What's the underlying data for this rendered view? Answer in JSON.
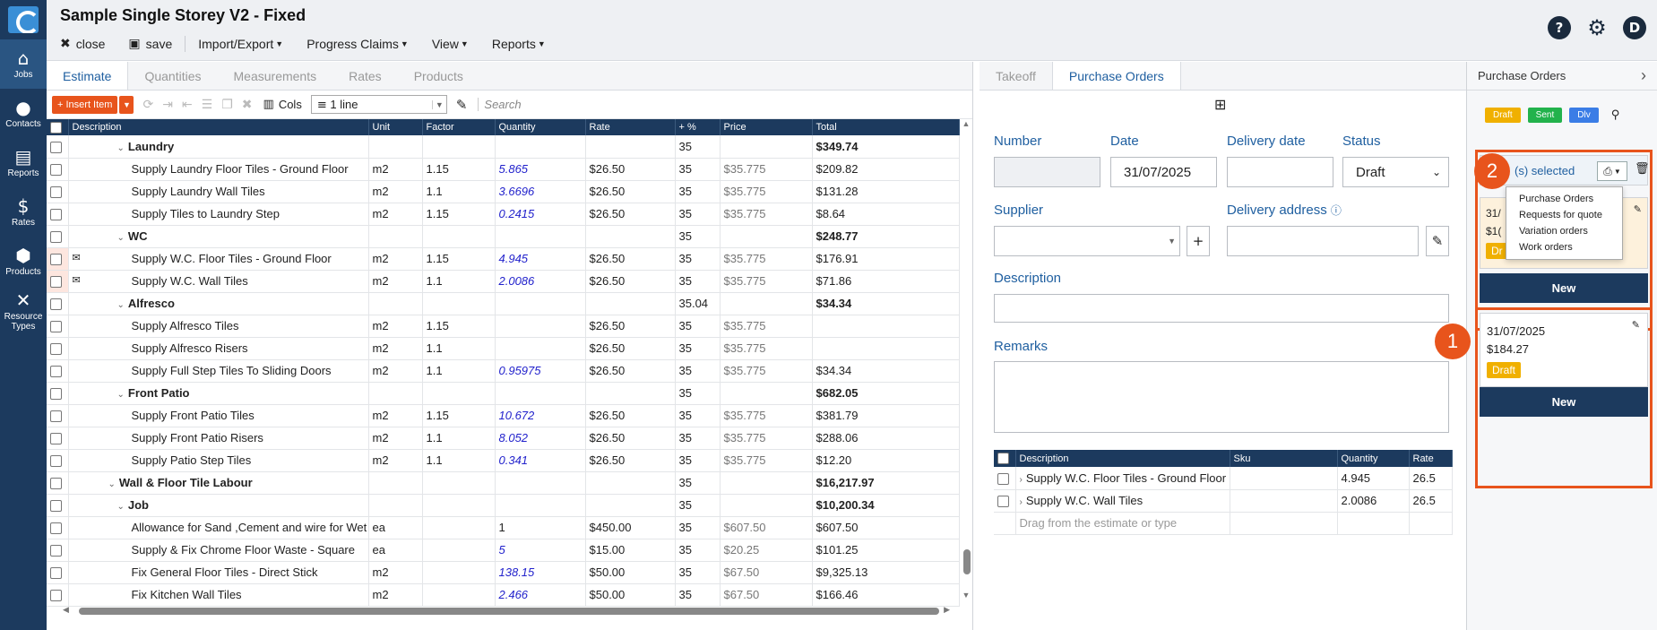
{
  "sidebar": {
    "items": [
      {
        "label": "Jobs",
        "icon": "home-icon"
      },
      {
        "label": "Contacts",
        "icon": "user-icon"
      },
      {
        "label": "Reports",
        "icon": "report-icon"
      },
      {
        "label": "Rates",
        "icon": "rates-icon"
      },
      {
        "label": "Products",
        "icon": "box-icon"
      },
      {
        "label": "Resource Types",
        "icon": "tools-icon"
      }
    ]
  },
  "header": {
    "title": "Sample Single Storey V2 - Fixed",
    "close": "close",
    "save": "save",
    "import_export": "Import/Export",
    "progress_claims": "Progress Claims",
    "view": "View",
    "reports": "Reports",
    "user_initial": "D"
  },
  "left_tabs": [
    "Estimate",
    "Quantities",
    "Measurements",
    "Rates",
    "Products"
  ],
  "estimate_toolbar": {
    "insert_item": "Insert Item",
    "cols": "Cols",
    "line_option": "1 line",
    "search_placeholder": "Search"
  },
  "grid": {
    "columns": [
      "Description",
      "Unit",
      "Factor",
      "Quantity",
      "Rate",
      "+ %",
      "Price",
      "Total"
    ],
    "rows": [
      {
        "level": 2,
        "group": true,
        "desc": "Laundry",
        "unit": "",
        "factor": "",
        "qty": "",
        "rate": "",
        "pct": "35",
        "price": "",
        "total": "$349.74"
      },
      {
        "level": 3,
        "desc": "Supply Laundry Floor Tiles - Ground Floor",
        "unit": "m2",
        "factor": "1.15",
        "qty": "5.865",
        "rate": "$26.50",
        "pct": "35",
        "price": "$35.775",
        "total": "$209.82"
      },
      {
        "level": 3,
        "desc": "Supply Laundry Wall Tiles",
        "unit": "m2",
        "factor": "1.1",
        "qty": "3.6696",
        "rate": "$26.50",
        "pct": "35",
        "price": "$35.775",
        "total": "$131.28"
      },
      {
        "level": 3,
        "desc": "Supply Tiles to Laundry Step",
        "unit": "m2",
        "factor": "1.15",
        "qty": "0.2415",
        "rate": "$26.50",
        "pct": "35",
        "price": "$35.775",
        "total": "$8.64"
      },
      {
        "level": 2,
        "group": true,
        "desc": "WC",
        "unit": "",
        "factor": "",
        "qty": "",
        "rate": "",
        "pct": "35",
        "price": "",
        "total": "$248.77"
      },
      {
        "level": 3,
        "marked": true,
        "desc": "Supply W.C. Floor Tiles - Ground Floor",
        "unit": "m2",
        "factor": "1.15",
        "qty": "4.945",
        "rate": "$26.50",
        "pct": "35",
        "price": "$35.775",
        "total": "$176.91"
      },
      {
        "level": 3,
        "marked": true,
        "desc": "Supply W.C. Wall Tiles",
        "unit": "m2",
        "factor": "1.1",
        "qty": "2.0086",
        "rate": "$26.50",
        "pct": "35",
        "price": "$35.775",
        "total": "$71.86"
      },
      {
        "level": 2,
        "group": true,
        "desc": "Alfresco",
        "unit": "",
        "factor": "",
        "qty": "",
        "rate": "",
        "pct": "35.04",
        "price": "",
        "total": "$34.34"
      },
      {
        "level": 3,
        "desc": "Supply Alfresco Tiles",
        "unit": "m2",
        "factor": "1.15",
        "qty": "",
        "rate": "$26.50",
        "pct": "35",
        "price": "$35.775",
        "total": ""
      },
      {
        "level": 3,
        "desc": "Supply Alfresco Risers",
        "unit": "m2",
        "factor": "1.1",
        "qty": "",
        "rate": "$26.50",
        "pct": "35",
        "price": "$35.775",
        "total": ""
      },
      {
        "level": 3,
        "desc": "Supply Full Step Tiles To Sliding Doors",
        "unit": "m2",
        "factor": "1.1",
        "qty": "0.95975",
        "rate": "$26.50",
        "pct": "35",
        "price": "$35.775",
        "total": "$34.34"
      },
      {
        "level": 2,
        "group": true,
        "desc": "Front Patio",
        "unit": "",
        "factor": "",
        "qty": "",
        "rate": "",
        "pct": "35",
        "price": "",
        "total": "$682.05"
      },
      {
        "level": 3,
        "desc": "Supply Front Patio Tiles",
        "unit": "m2",
        "factor": "1.15",
        "qty": "10.672",
        "rate": "$26.50",
        "pct": "35",
        "price": "$35.775",
        "total": "$381.79"
      },
      {
        "level": 3,
        "desc": "Supply Front Patio Risers",
        "unit": "m2",
        "factor": "1.1",
        "qty": "8.052",
        "rate": "$26.50",
        "pct": "35",
        "price": "$35.775",
        "total": "$288.06"
      },
      {
        "level": 3,
        "desc": "Supply Patio Step Tiles",
        "unit": "m2",
        "factor": "1.1",
        "qty": "0.341",
        "rate": "$26.50",
        "pct": "35",
        "price": "$35.775",
        "total": "$12.20"
      },
      {
        "level": 1,
        "group": true,
        "desc": "Wall & Floor Tile Labour",
        "unit": "",
        "factor": "",
        "qty": "",
        "rate": "",
        "pct": "35",
        "price": "",
        "total": "$16,217.97"
      },
      {
        "level": 2,
        "group": true,
        "desc": "Job",
        "unit": "",
        "factor": "",
        "qty": "",
        "rate": "",
        "pct": "35",
        "price": "",
        "total": "$10,200.34"
      },
      {
        "level": 3,
        "desc": "Allowance for Sand ,Cement and wire for Wet Areas",
        "unit": "ea",
        "factor": "",
        "qty": "1",
        "qty_plain": true,
        "rate": "$450.00",
        "pct": "35",
        "price": "$607.50",
        "total": "$607.50"
      },
      {
        "level": 3,
        "desc": "Supply & Fix Chrome Floor Waste - Square",
        "unit": "ea",
        "factor": "",
        "qty": "5",
        "rate": "$15.00",
        "pct": "35",
        "price": "$20.25",
        "total": "$101.25"
      },
      {
        "level": 3,
        "desc": "Fix General Floor Tiles - Direct Stick",
        "unit": "m2",
        "factor": "",
        "qty": "138.15",
        "rate": "$50.00",
        "pct": "35",
        "price": "$67.50",
        "total": "$9,325.13"
      },
      {
        "level": 3,
        "desc": "Fix Kitchen Wall Tiles",
        "unit": "m2",
        "factor": "",
        "qty": "2.466",
        "rate": "$50.00",
        "pct": "35",
        "price": "$67.50",
        "total": "$166.46"
      }
    ]
  },
  "middle_tabs": [
    "Takeoff",
    "Purchase Orders"
  ],
  "po_form": {
    "number_label": "Number",
    "number_value": "",
    "date_label": "Date",
    "date_value": "31/07/2025",
    "delivery_date_label": "Delivery date",
    "status_label": "Status",
    "status_value": "Draft",
    "supplier_label": "Supplier",
    "delivery_address_label": "Delivery address",
    "description_label": "Description",
    "remarks_label": "Remarks"
  },
  "po_lines": {
    "columns": [
      "Description",
      "Sku",
      "Quantity",
      "Rate"
    ],
    "rows": [
      {
        "desc": "Supply W.C. Floor Tiles - Ground Floor",
        "sku": "",
        "qty": "4.945",
        "rate": "26.5"
      },
      {
        "desc": "Supply W.C. Wall Tiles",
        "sku": "",
        "qty": "2.0086",
        "rate": "26.5"
      }
    ],
    "drag_placeholder": "Drag from the estimate or type"
  },
  "right_panel": {
    "title": "Purchase Orders",
    "filters": [
      "Draft",
      "Sent",
      "Dlv"
    ],
    "selected_text": "(s) selected",
    "print_menu": [
      "Purchase Orders",
      "Requests for quote",
      "Variation orders",
      "Work orders"
    ],
    "card1_partial_date": "31/",
    "card1_partial_amount": "$1(",
    "card1_partial_badge": "Dr",
    "card2": {
      "date": "31/07/2025",
      "amount": "$184.27",
      "status": "Draft"
    },
    "new_label": "New",
    "callout_1": "1",
    "callout_2": "2"
  },
  "colors": {
    "accent": "#e8541c",
    "navy": "#1c3a5e",
    "draft": "#f0b000",
    "sent": "#22b24c",
    "dlv": "#3b7de6"
  }
}
